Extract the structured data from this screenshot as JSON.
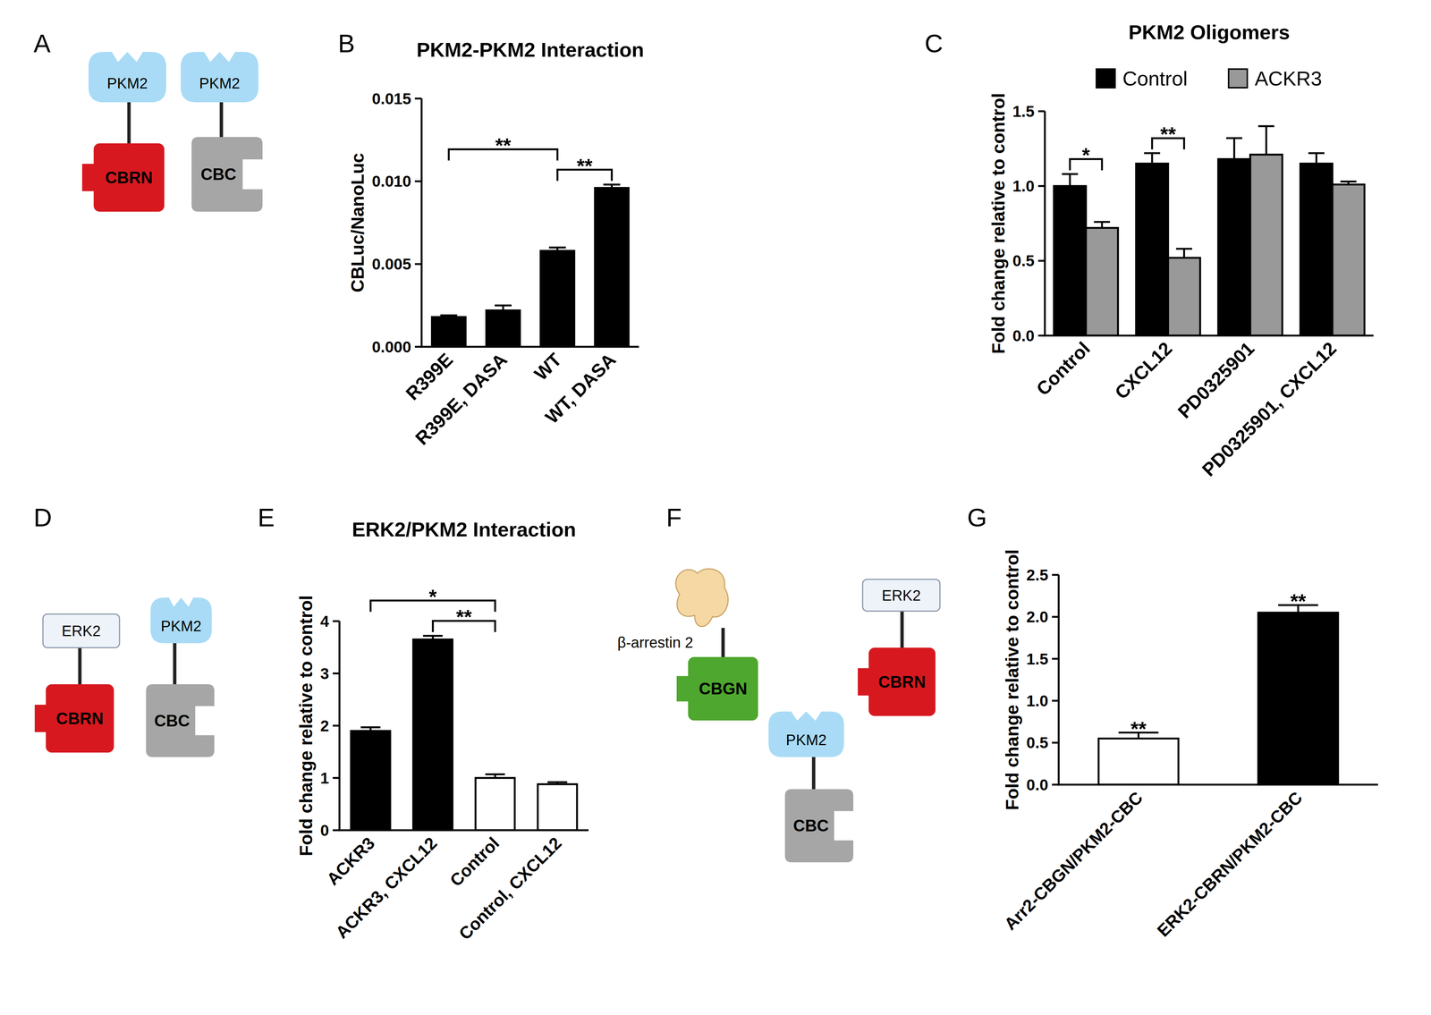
{
  "chart_data": [
    {
      "panel": "B",
      "type": "bar",
      "title": "PKM2-PKM2 Interaction",
      "y_label": "CBLuc/NanoLuc",
      "categories": [
        "R399E",
        "R399E, DASA",
        "WT",
        "WT, DASA"
      ],
      "values": [
        0.0018,
        0.0022,
        0.0058,
        0.0096
      ],
      "errors": [
        0.0001,
        0.0003,
        0.0002,
        0.0002
      ],
      "color": "#000000",
      "ylim": [
        0,
        0.015
      ],
      "yticks": [
        {
          "value": 0,
          "label": "0.000"
        },
        0.005,
        {
          "value": 0.01,
          "label": "0.010"
        },
        {
          "value": 0.015,
          "label": "0.015"
        }
      ],
      "annotations": [
        {
          "text": "**",
          "between": [
            "R399E",
            "WT"
          ]
        },
        {
          "text": "**",
          "between": [
            "WT",
            "WT, DASA"
          ]
        }
      ]
    },
    {
      "panel": "C",
      "type": "bar",
      "title": "PKM2 Oligomers",
      "y_label": "Fold change relative to control",
      "categories": [
        "Control",
        "CXCL12",
        "PD0325901",
        "PD0325901, CXCL12"
      ],
      "series": [
        {
          "name": "Control",
          "color": "#000000",
          "values": [
            1.0,
            1.15,
            1.18,
            1.15
          ],
          "errors": [
            0.08,
            0.07,
            0.14,
            0.07
          ]
        },
        {
          "name": "ACKR3",
          "color": "#999999",
          "values": [
            0.72,
            0.52,
            1.21,
            1.01
          ],
          "errors": [
            0.04,
            0.06,
            0.19,
            0.02
          ]
        }
      ],
      "ylim": [
        0,
        1.5
      ],
      "yticks": [
        {
          "value": 0,
          "label": "0.0"
        },
        0.5,
        {
          "value": 1,
          "label": "1.0"
        },
        1.5
      ],
      "legend": "top",
      "annotations": [
        {
          "text": "*",
          "category": "Control",
          "series": [
            "Control",
            "ACKR3"
          ]
        },
        {
          "text": "**",
          "category": "CXCL12",
          "series": [
            "Control",
            "ACKR3"
          ]
        }
      ]
    },
    {
      "panel": "E",
      "type": "bar",
      "title": "ERK2/PKM2 Interaction",
      "y_label": "Fold change relative to control",
      "categories": [
        "ACKR3",
        "ACKR3, CXCL12",
        "Control",
        "Control, CXCL12"
      ],
      "values": [
        1.9,
        3.65,
        1.0,
        0.88
      ],
      "errors": [
        0.07,
        0.07,
        0.07,
        0.04
      ],
      "colors": [
        "#000000",
        "#000000",
        "#ffffff",
        "#ffffff"
      ],
      "ylim": [
        0,
        4
      ],
      "yticks": [
        0,
        1,
        2,
        3,
        4
      ],
      "annotations": [
        {
          "text": "*",
          "between": [
            "ACKR3",
            "Control"
          ]
        },
        {
          "text": "**",
          "between": [
            "ACKR3, CXCL12",
            "Control"
          ]
        }
      ]
    },
    {
      "panel": "G",
      "type": "bar",
      "y_label": "Fold change relative to control",
      "categories": [
        "Arr2-CBGN/PKM2-CBC",
        "ERK2-CBRN/PKM2-CBC"
      ],
      "values": [
        0.55,
        2.05
      ],
      "errors": [
        0.07,
        0.09
      ],
      "colors": [
        "#ffffff",
        "#000000"
      ],
      "ylim": [
        0,
        2.5
      ],
      "yticks": [
        {
          "value": 0,
          "label": "0.0"
        },
        0.5,
        {
          "value": 1,
          "label": "1.0"
        },
        1.5,
        {
          "value": 2,
          "label": "2.0"
        },
        2.5
      ],
      "annotations": [
        {
          "text": "**",
          "category": "Arr2-CBGN/PKM2-CBC"
        },
        {
          "text": "**",
          "category": "ERK2-CBRN/PKM2-CBC"
        }
      ]
    }
  ],
  "diagrams": [
    {
      "panel": "A",
      "constructs": [
        {
          "protein": "PKM2",
          "protein_color": "#a9dbf6",
          "tag": "CBRN",
          "color": "#d7191f"
        },
        {
          "protein": "PKM2",
          "protein_color": "#a9dbf6",
          "tag": "CBC",
          "color": "#a6a6a6"
        }
      ]
    },
    {
      "panel": "D",
      "constructs": [
        {
          "protein": "ERK2",
          "protein_color": "#eef3fa",
          "tag": "CBRN",
          "color": "#d7191f"
        },
        {
          "protein": "PKM2",
          "protein_color": "#a9dbf6",
          "tag": "CBC",
          "color": "#a6a6a6"
        }
      ]
    },
    {
      "panel": "F",
      "constructs": [
        {
          "protein": "β-arrestin 2",
          "protein_color": "#f5d8a3",
          "tag": "CBGN",
          "color": "#4ea72e"
        },
        {
          "protein": "PKM2",
          "protein_color": "#a9dbf6",
          "tag": "CBC",
          "color": "#a6a6a6"
        },
        {
          "protein": "ERK2",
          "protein_color": "#eef3fa",
          "tag": "CBRN",
          "color": "#d7191f"
        }
      ]
    }
  ]
}
